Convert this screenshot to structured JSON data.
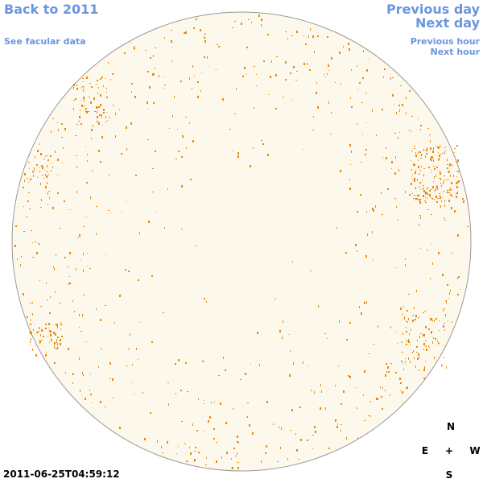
{
  "nav": {
    "back_year": "Back to 2011",
    "facular": "See facular data",
    "previous_day": "Previous day",
    "next_day": "Next day",
    "previous_hour": "Previous hour",
    "next_hour": "Next hour"
  },
  "timestamp": "2011-06-25T04:59:12",
  "compass": {
    "north": "N",
    "east": "E",
    "center": "+",
    "west": "W",
    "south": "S"
  }
}
